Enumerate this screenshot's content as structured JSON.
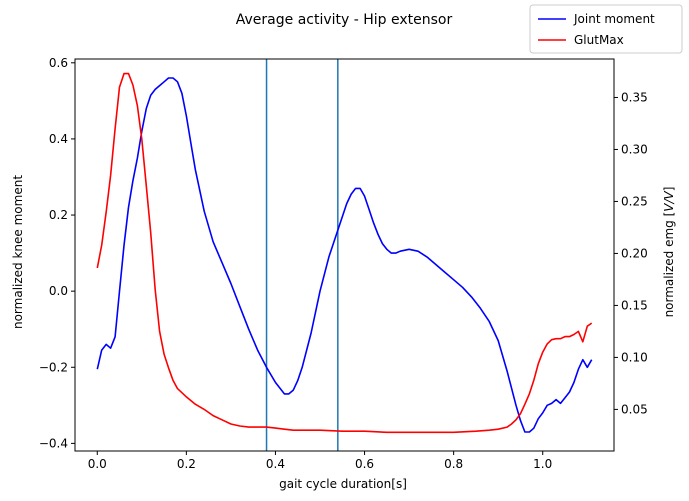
{
  "chart_data": {
    "type": "line",
    "title": "Average activity - Hip extensor",
    "xlabel": "gait cycle duration[s]",
    "ylabel_left": "normalized knee moment",
    "ylabel_right": "normalized emg [V/V]",
    "ylabel_right_prefix": "normalized emg [",
    "ylabel_right_italic": "V/V",
    "ylabel_right_suffix": "]",
    "xlim": [
      -0.05,
      1.16
    ],
    "ylim_left": [
      -0.42,
      0.61
    ],
    "ylim_right": [
      0.01,
      0.387
    ],
    "x_ticks": [
      0.0,
      0.2,
      0.4,
      0.6,
      0.8,
      1.0
    ],
    "x_tick_labels": [
      "0.0",
      "0.2",
      "0.4",
      "0.6",
      "0.8",
      "1.0"
    ],
    "y_left_ticks": [
      -0.4,
      -0.2,
      0.0,
      0.2,
      0.4,
      0.6
    ],
    "y_left_tick_labels": [
      "−0.4",
      "−0.2",
      "0.0",
      "0.2",
      "0.4",
      "0.6"
    ],
    "y_right_ticks": [
      0.05,
      0.1,
      0.15,
      0.2,
      0.25,
      0.3,
      0.35
    ],
    "y_right_tick_labels": [
      "0.05",
      "0.10",
      "0.15",
      "0.20",
      "0.25",
      "0.30",
      "0.35"
    ],
    "vlines": [
      0.38,
      0.54
    ],
    "vline_color": "#1f77b4",
    "legend_position": "top-right",
    "series": [
      {
        "name": "Joint moment",
        "axis": "left",
        "color": "#0000ff",
        "x": [
          0.0,
          0.01,
          0.02,
          0.03,
          0.04,
          0.05,
          0.06,
          0.07,
          0.08,
          0.09,
          0.1,
          0.11,
          0.12,
          0.13,
          0.14,
          0.15,
          0.16,
          0.17,
          0.18,
          0.19,
          0.2,
          0.21,
          0.22,
          0.24,
          0.26,
          0.28,
          0.3,
          0.32,
          0.34,
          0.36,
          0.38,
          0.4,
          0.42,
          0.43,
          0.44,
          0.45,
          0.46,
          0.48,
          0.5,
          0.52,
          0.54,
          0.56,
          0.57,
          0.58,
          0.59,
          0.6,
          0.61,
          0.62,
          0.63,
          0.64,
          0.65,
          0.66,
          0.67,
          0.68,
          0.7,
          0.72,
          0.74,
          0.76,
          0.78,
          0.8,
          0.82,
          0.84,
          0.86,
          0.88,
          0.9,
          0.92,
          0.94,
          0.95,
          0.96,
          0.97,
          0.98,
          0.99,
          1.0,
          1.01,
          1.02,
          1.03,
          1.04,
          1.05,
          1.06,
          1.07,
          1.08,
          1.09,
          1.1,
          1.11
        ],
        "y": [
          -0.205,
          -0.155,
          -0.14,
          -0.15,
          -0.12,
          0.0,
          0.12,
          0.22,
          0.29,
          0.35,
          0.42,
          0.48,
          0.515,
          0.53,
          0.54,
          0.55,
          0.56,
          0.56,
          0.55,
          0.52,
          0.46,
          0.39,
          0.32,
          0.21,
          0.13,
          0.075,
          0.02,
          -0.04,
          -0.1,
          -0.155,
          -0.2,
          -0.24,
          -0.27,
          -0.27,
          -0.26,
          -0.235,
          -0.2,
          -0.11,
          0.0,
          0.09,
          0.16,
          0.23,
          0.255,
          0.27,
          0.27,
          0.25,
          0.215,
          0.18,
          0.15,
          0.125,
          0.11,
          0.1,
          0.1,
          0.105,
          0.11,
          0.105,
          0.09,
          0.07,
          0.05,
          0.03,
          0.01,
          -0.015,
          -0.045,
          -0.08,
          -0.13,
          -0.21,
          -0.3,
          -0.34,
          -0.37,
          -0.37,
          -0.36,
          -0.335,
          -0.32,
          -0.3,
          -0.295,
          -0.285,
          -0.295,
          -0.28,
          -0.265,
          -0.24,
          -0.205,
          -0.18,
          -0.2,
          -0.18
        ]
      },
      {
        "name": "GlutMax",
        "axis": "right",
        "color": "#ff0000",
        "x": [
          0.0,
          0.01,
          0.02,
          0.03,
          0.04,
          0.05,
          0.06,
          0.07,
          0.08,
          0.09,
          0.1,
          0.11,
          0.12,
          0.13,
          0.14,
          0.15,
          0.16,
          0.17,
          0.18,
          0.2,
          0.22,
          0.24,
          0.26,
          0.28,
          0.3,
          0.32,
          0.34,
          0.36,
          0.38,
          0.4,
          0.42,
          0.44,
          0.46,
          0.5,
          0.55,
          0.6,
          0.65,
          0.7,
          0.75,
          0.8,
          0.85,
          0.88,
          0.9,
          0.92,
          0.93,
          0.94,
          0.95,
          0.96,
          0.97,
          0.98,
          0.99,
          1.0,
          1.01,
          1.02,
          1.03,
          1.04,
          1.05,
          1.06,
          1.07,
          1.08,
          1.09,
          1.1,
          1.11
        ],
        "y": [
          0.186,
          0.208,
          0.24,
          0.275,
          0.32,
          0.36,
          0.373,
          0.373,
          0.362,
          0.342,
          0.31,
          0.265,
          0.22,
          0.165,
          0.125,
          0.103,
          0.09,
          0.078,
          0.07,
          0.062,
          0.055,
          0.05,
          0.044,
          0.04,
          0.036,
          0.034,
          0.033,
          0.033,
          0.033,
          0.032,
          0.031,
          0.03,
          0.03,
          0.03,
          0.029,
          0.029,
          0.028,
          0.028,
          0.028,
          0.028,
          0.029,
          0.03,
          0.031,
          0.033,
          0.036,
          0.04,
          0.046,
          0.055,
          0.065,
          0.078,
          0.094,
          0.105,
          0.113,
          0.117,
          0.118,
          0.118,
          0.12,
          0.12,
          0.122,
          0.125,
          0.115,
          0.13,
          0.133
        ]
      }
    ]
  }
}
